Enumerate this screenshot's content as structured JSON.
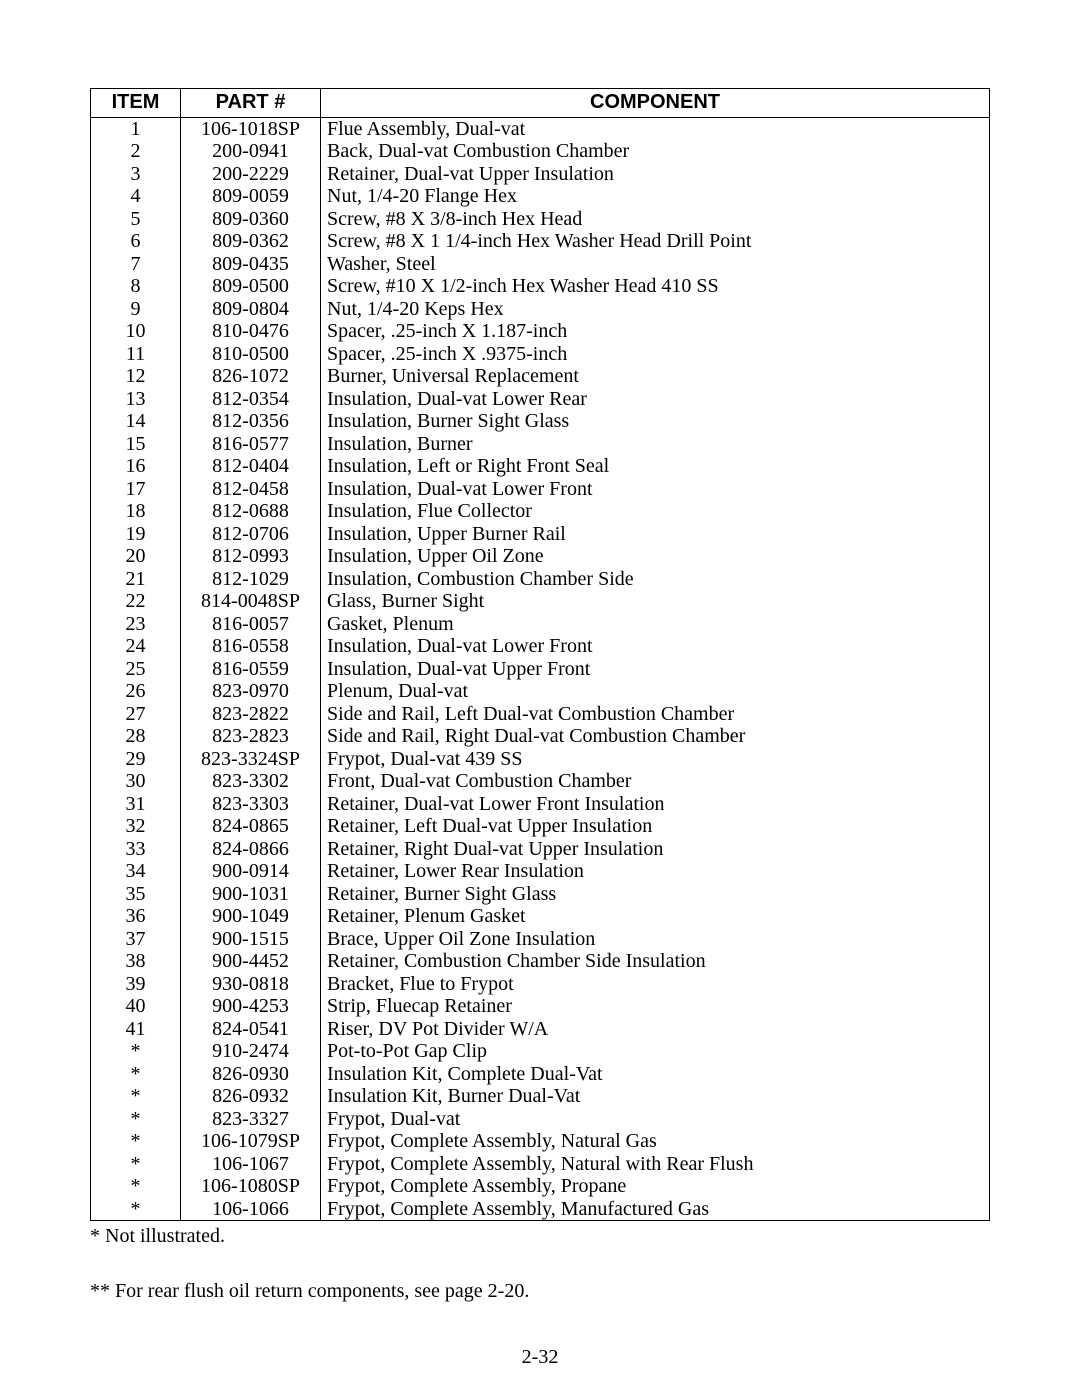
{
  "table": {
    "headers": {
      "item": "ITEM",
      "part": "PART #",
      "component": "COMPONENT"
    },
    "rows": [
      {
        "item": "1",
        "part": "106-1018SP",
        "component": "Flue Assembly, Dual-vat"
      },
      {
        "item": "2",
        "part": "200-0941",
        "component": "Back, Dual-vat Combustion Chamber"
      },
      {
        "item": "3",
        "part": "200-2229",
        "component": "Retainer, Dual-vat Upper Insulation"
      },
      {
        "item": "4",
        "part": "809-0059",
        "component": "Nut, 1/4-20 Flange Hex"
      },
      {
        "item": "5",
        "part": "809-0360",
        "component": "Screw, #8 X 3/8-inch Hex Head"
      },
      {
        "item": "6",
        "part": "809-0362",
        "component": "Screw, #8 X 1 1/4-inch Hex Washer Head Drill Point"
      },
      {
        "item": "7",
        "part": "809-0435",
        "component": "Washer, Steel"
      },
      {
        "item": "8",
        "part": "809-0500",
        "component": "Screw, #10 X 1/2-inch Hex Washer Head 410 SS"
      },
      {
        "item": "9",
        "part": "809-0804",
        "component": "Nut, 1/4-20 Keps Hex"
      },
      {
        "item": "10",
        "part": "810-0476",
        "component": "Spacer, .25-inch X 1.187-inch"
      },
      {
        "item": "11",
        "part": "810-0500",
        "component": "Spacer, .25-inch X .9375-inch"
      },
      {
        "item": "12",
        "part": "826-1072",
        "component": "Burner, Universal Replacement"
      },
      {
        "item": "13",
        "part": "812-0354",
        "component": "Insulation, Dual-vat Lower Rear"
      },
      {
        "item": "14",
        "part": "812-0356",
        "component": "Insulation, Burner Sight Glass"
      },
      {
        "item": "15",
        "part": "816-0577",
        "component": "Insulation, Burner"
      },
      {
        "item": "16",
        "part": "812-0404",
        "component": "Insulation, Left or Right Front Seal"
      },
      {
        "item": "17",
        "part": "812-0458",
        "component": "Insulation, Dual-vat Lower Front"
      },
      {
        "item": "18",
        "part": "812-0688",
        "component": "Insulation, Flue Collector"
      },
      {
        "item": "19",
        "part": "812-0706",
        "component": "Insulation, Upper Burner Rail"
      },
      {
        "item": "20",
        "part": "812-0993",
        "component": "Insulation, Upper Oil Zone"
      },
      {
        "item": "21",
        "part": "812-1029",
        "component": "Insulation, Combustion Chamber Side"
      },
      {
        "item": "22",
        "part": "814-0048SP",
        "component": "Glass, Burner Sight"
      },
      {
        "item": "23",
        "part": "816-0057",
        "component": "Gasket, Plenum"
      },
      {
        "item": "24",
        "part": "816-0558",
        "component": "Insulation, Dual-vat Lower Front"
      },
      {
        "item": "25",
        "part": "816-0559",
        "component": "Insulation, Dual-vat Upper Front"
      },
      {
        "item": "26",
        "part": "823-0970",
        "component": "Plenum, Dual-vat"
      },
      {
        "item": "27",
        "part": "823-2822",
        "component": "Side and Rail, Left Dual-vat Combustion Chamber"
      },
      {
        "item": "28",
        "part": "823-2823",
        "component": "Side and Rail, Right Dual-vat Combustion Chamber"
      },
      {
        "item": "29",
        "part": "823-3324SP",
        "component": "Frypot, Dual-vat 439 SS"
      },
      {
        "item": "30",
        "part": "823-3302",
        "component": "Front, Dual-vat Combustion Chamber"
      },
      {
        "item": "31",
        "part": "823-3303",
        "component": "Retainer, Dual-vat Lower Front Insulation"
      },
      {
        "item": "32",
        "part": "824-0865",
        "component": "Retainer, Left Dual-vat Upper Insulation"
      },
      {
        "item": "33",
        "part": "824-0866",
        "component": "Retainer, Right Dual-vat Upper Insulation"
      },
      {
        "item": "34",
        "part": "900-0914",
        "component": "Retainer, Lower Rear Insulation"
      },
      {
        "item": "35",
        "part": "900-1031",
        "component": "Retainer, Burner Sight Glass"
      },
      {
        "item": "36",
        "part": "900-1049",
        "component": "Retainer, Plenum Gasket"
      },
      {
        "item": "37",
        "part": "900-1515",
        "component": "Brace, Upper Oil Zone Insulation"
      },
      {
        "item": "38",
        "part": "900-4452",
        "component": "Retainer, Combustion Chamber Side Insulation"
      },
      {
        "item": "39",
        "part": "930-0818",
        "component": "Bracket, Flue to Frypot"
      },
      {
        "item": "40",
        "part": "900-4253",
        "component": "Strip, Fluecap Retainer"
      },
      {
        "item": "41",
        "part": "824-0541",
        "component": "Riser, DV Pot Divider W/A"
      },
      {
        "item": "*",
        "part": "910-2474",
        "component": "Pot-to-Pot Gap Clip"
      },
      {
        "item": "*",
        "part": "826-0930",
        "component": "Insulation Kit, Complete Dual-Vat"
      },
      {
        "item": "*",
        "part": "826-0932",
        "component": "Insulation Kit, Burner Dual-Vat"
      },
      {
        "item": "*",
        "part": "823-3327",
        "component": "Frypot, Dual-vat"
      },
      {
        "item": "*",
        "part": "106-1079SP",
        "component": "Frypot, Complete Assembly, Natural Gas"
      },
      {
        "item": "*",
        "part": "106-1067",
        "component": "Frypot, Complete Assembly, Natural with Rear Flush"
      },
      {
        "item": "*",
        "part": "106-1080SP",
        "component": "Frypot, Complete Assembly, Propane"
      },
      {
        "item": "*",
        "part": "106-1066",
        "component": "Frypot, Complete Assembly, Manufactured Gas"
      }
    ]
  },
  "footnote1": "* Not illustrated.",
  "footnote2": "** For rear flush oil return components, see page 2-20.",
  "page_number": "2-32"
}
